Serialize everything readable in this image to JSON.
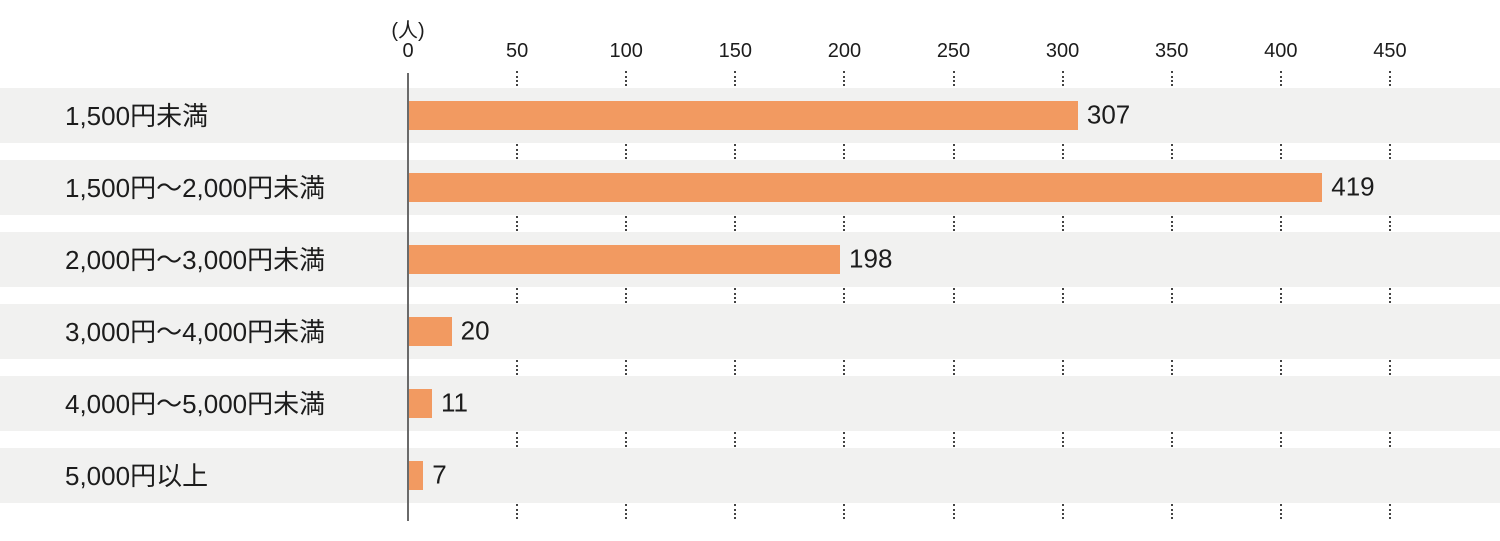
{
  "chart_data": {
    "type": "bar",
    "orientation": "horizontal",
    "title": "",
    "unit_label": "(人)",
    "categories": [
      "1,500円未満",
      "1,500円〜2,000円未満",
      "2,000円〜3,000円未満",
      "3,000円〜4,000円未満",
      "4,000円〜5,000円未満",
      "5,000円以上"
    ],
    "values": [
      307,
      419,
      198,
      20,
      11,
      7
    ],
    "value_labels": [
      "307",
      "419",
      "198",
      "20",
      "11",
      "7"
    ],
    "xlim": [
      0,
      450
    ],
    "xticks": [
      0,
      50,
      100,
      150,
      200,
      250,
      300,
      350,
      400,
      450
    ],
    "xlabel": "",
    "ylabel": "",
    "legend": "none",
    "grid": "dotted tick marks in gaps between row bands",
    "colors": {
      "bar": "#F29A61",
      "row_band": "#F1F1F0",
      "axis_line": "#6A6A6A",
      "tick_dots": "#434343",
      "text": "#1C1C1C",
      "background": "#FFFFFF"
    }
  }
}
